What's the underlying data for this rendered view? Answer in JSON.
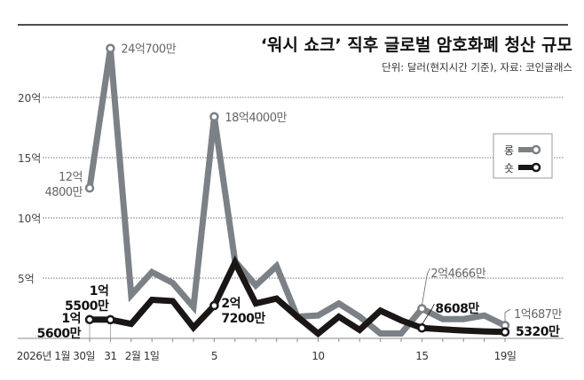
{
  "chart_data": {
    "type": "line",
    "title": "‘워시 쇼크’ 직후 글로벌 암호화폐 청산 규모",
    "subtitle": "단위: 달러(현지시간 기준), 자료: 코인글래스",
    "x": [
      "2026-01-30",
      "2026-01-31",
      "2026-02-01",
      "2026-02-02",
      "2026-02-03",
      "2026-02-04",
      "2026-02-05",
      "2026-02-06",
      "2026-02-07",
      "2026-02-08",
      "2026-02-09",
      "2026-02-10",
      "2026-02-11",
      "2026-02-12",
      "2026-02-13",
      "2026-02-14",
      "2026-02-15",
      "2026-02-16",
      "2026-02-17",
      "2026-02-18",
      "2026-02-19"
    ],
    "x_tick_labels": [
      {
        "day": 0,
        "label": "2026년 1월 30일"
      },
      {
        "day": 1,
        "label": "31"
      },
      {
        "day": 2,
        "label": "2월 1일"
      },
      {
        "day": 6,
        "label": "5"
      },
      {
        "day": 11,
        "label": "10"
      },
      {
        "day": 16,
        "label": "15"
      },
      {
        "day": 20,
        "label": "19일"
      }
    ],
    "y_unit": "억 달러",
    "ylim": [
      0,
      25
    ],
    "y_ticks": [
      {
        "value": 5,
        "label": "5억"
      },
      {
        "value": 10,
        "label": "10억"
      },
      {
        "value": 15,
        "label": "15억"
      },
      {
        "value": 20,
        "label": "20억"
      }
    ],
    "grid": "horizontal dotted",
    "legend_placement": "right",
    "series": [
      {
        "name": "롱",
        "color": "#7b8186",
        "values": [
          12.48,
          24.07,
          3.6,
          5.5,
          4.6,
          2.6,
          18.4,
          6.4,
          4.4,
          6.0,
          1.8,
          1.9,
          2.9,
          1.8,
          0.4,
          0.4,
          2.4666,
          1.6,
          1.6,
          1.9,
          1.0687
        ]
      },
      {
        "name": "숏",
        "color": "#1a1616",
        "values": [
          1.56,
          1.55,
          1.2,
          3.2,
          3.1,
          0.9,
          2.72,
          6.3,
          2.9,
          3.3,
          1.8,
          0.4,
          1.8,
          0.7,
          2.3,
          1.5,
          0.8608,
          0.75,
          0.65,
          0.58,
          0.532
        ]
      }
    ],
    "annotations": [
      {
        "series": 0,
        "day": 0,
        "lines": [
          "12억",
          "4800만"
        ]
      },
      {
        "series": 0,
        "day": 1,
        "lines": [
          "24억700만"
        ]
      },
      {
        "series": 0,
        "day": 6,
        "lines": [
          "18억4000만"
        ]
      },
      {
        "series": 0,
        "day": 16,
        "lines": [
          "2억4666만"
        ]
      },
      {
        "series": 0,
        "day": 20,
        "lines": [
          "1억687만"
        ]
      },
      {
        "series": 1,
        "day": 0,
        "lines": [
          "1억",
          "5600만"
        ]
      },
      {
        "series": 1,
        "day": 1,
        "lines": [
          "1억",
          "5500만"
        ]
      },
      {
        "series": 1,
        "day": 6,
        "lines": [
          "2억",
          "7200만"
        ]
      },
      {
        "series": 1,
        "day": 16,
        "lines": [
          "8608만"
        ]
      },
      {
        "series": 1,
        "day": 20,
        "lines": [
          "5320만"
        ]
      }
    ]
  }
}
